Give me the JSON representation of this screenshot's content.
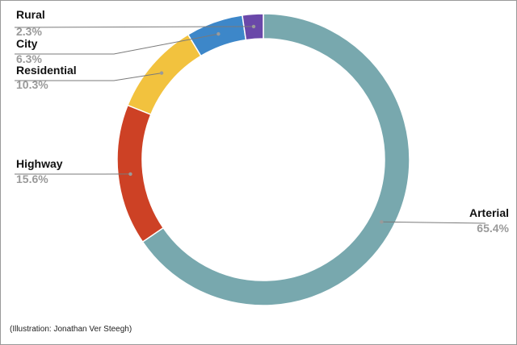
{
  "chart_data": {
    "type": "pie",
    "variant": "donut",
    "title": "",
    "slices": [
      {
        "label": "Arterial",
        "value": 65.4,
        "display": "65.4%",
        "color": "#78a8ae"
      },
      {
        "label": "Highway",
        "value": 15.6,
        "display": "15.6%",
        "color": "#cd4125"
      },
      {
        "label": "Residential",
        "value": 10.3,
        "display": "10.3%",
        "color": "#f2c23e"
      },
      {
        "label": "City",
        "value": 6.3,
        "display": "6.3%",
        "color": "#3d87c9"
      },
      {
        "label": "Rural",
        "value": 2.3,
        "display": "2.3%",
        "color": "#6a48a9"
      }
    ],
    "labels_outside": true,
    "leader_lines": true
  },
  "credit": "(Illustration: Jonathan Ver Steegh)"
}
